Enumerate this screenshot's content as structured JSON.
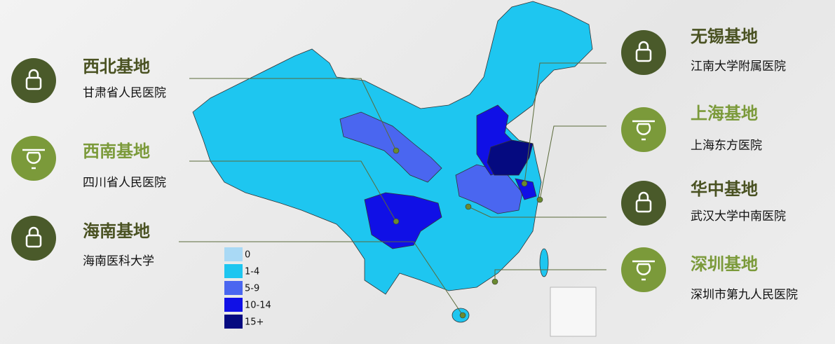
{
  "bases": [
    {
      "title": "西北基地",
      "subtitle": "甘肃省人民医院"
    },
    {
      "title": "西南基地",
      "subtitle": "四川省人民医院"
    },
    {
      "title": "海南基地",
      "subtitle": "海南医科大学"
    },
    {
      "title": "无锡基地",
      "subtitle": "江南大学附属医院"
    },
    {
      "title": "上海基地",
      "subtitle": "上海东方医院"
    },
    {
      "title": "华中基地",
      "subtitle": "武汉大学中南医院"
    },
    {
      "title": "深圳基地",
      "subtitle": "深圳市第九人民医院"
    }
  ],
  "legend": [
    {
      "label": "0",
      "color": "#a9d9f5"
    },
    {
      "label": "1-4",
      "color": "#1ec6f0"
    },
    {
      "label": "5-9",
      "color": "#4a66f0"
    },
    {
      "label": "10-14",
      "color": "#1010e6"
    },
    {
      "label": "15+",
      "color": "#050a80"
    }
  ]
}
